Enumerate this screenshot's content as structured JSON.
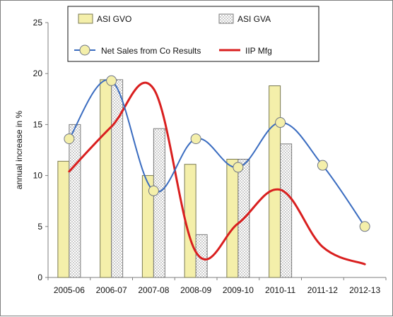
{
  "chart_data": {
    "type": "bar",
    "categories": [
      "2005-06",
      "2006-07",
      "2007-08",
      "2008-09",
      "2009-10",
      "2010-11",
      "2011-12",
      "2012-13"
    ],
    "ylabel": "annual increase in %",
    "ylim": [
      0,
      25
    ],
    "yticks": [
      "0",
      "5",
      "10",
      "15",
      "20",
      "25"
    ],
    "grid": false,
    "legend_position": "top",
    "series": [
      {
        "name": "ASI GVO",
        "kind": "bar",
        "color": "#f4efaa",
        "values": [
          11.4,
          19.4,
          10.0,
          11.1,
          11.6,
          18.8,
          null,
          null
        ]
      },
      {
        "name": "ASI GVA",
        "kind": "bar",
        "color": "#d8d8d8",
        "pattern": "dotted",
        "values": [
          15.0,
          19.4,
          14.6,
          4.2,
          11.6,
          13.1,
          null,
          null
        ]
      },
      {
        "name": "Net Sales from Co Results",
        "kind": "line",
        "color": "#3a6cc0",
        "marker_color": "#f4efaa",
        "values": [
          13.6,
          19.3,
          8.5,
          13.6,
          10.8,
          15.2,
          11.0,
          5.0
        ]
      },
      {
        "name": "IIP Mfg",
        "kind": "line",
        "color": "#d91f1f",
        "values": [
          10.4,
          14.8,
          18.5,
          2.5,
          5.3,
          8.6,
          3.0,
          1.3
        ]
      }
    ]
  }
}
